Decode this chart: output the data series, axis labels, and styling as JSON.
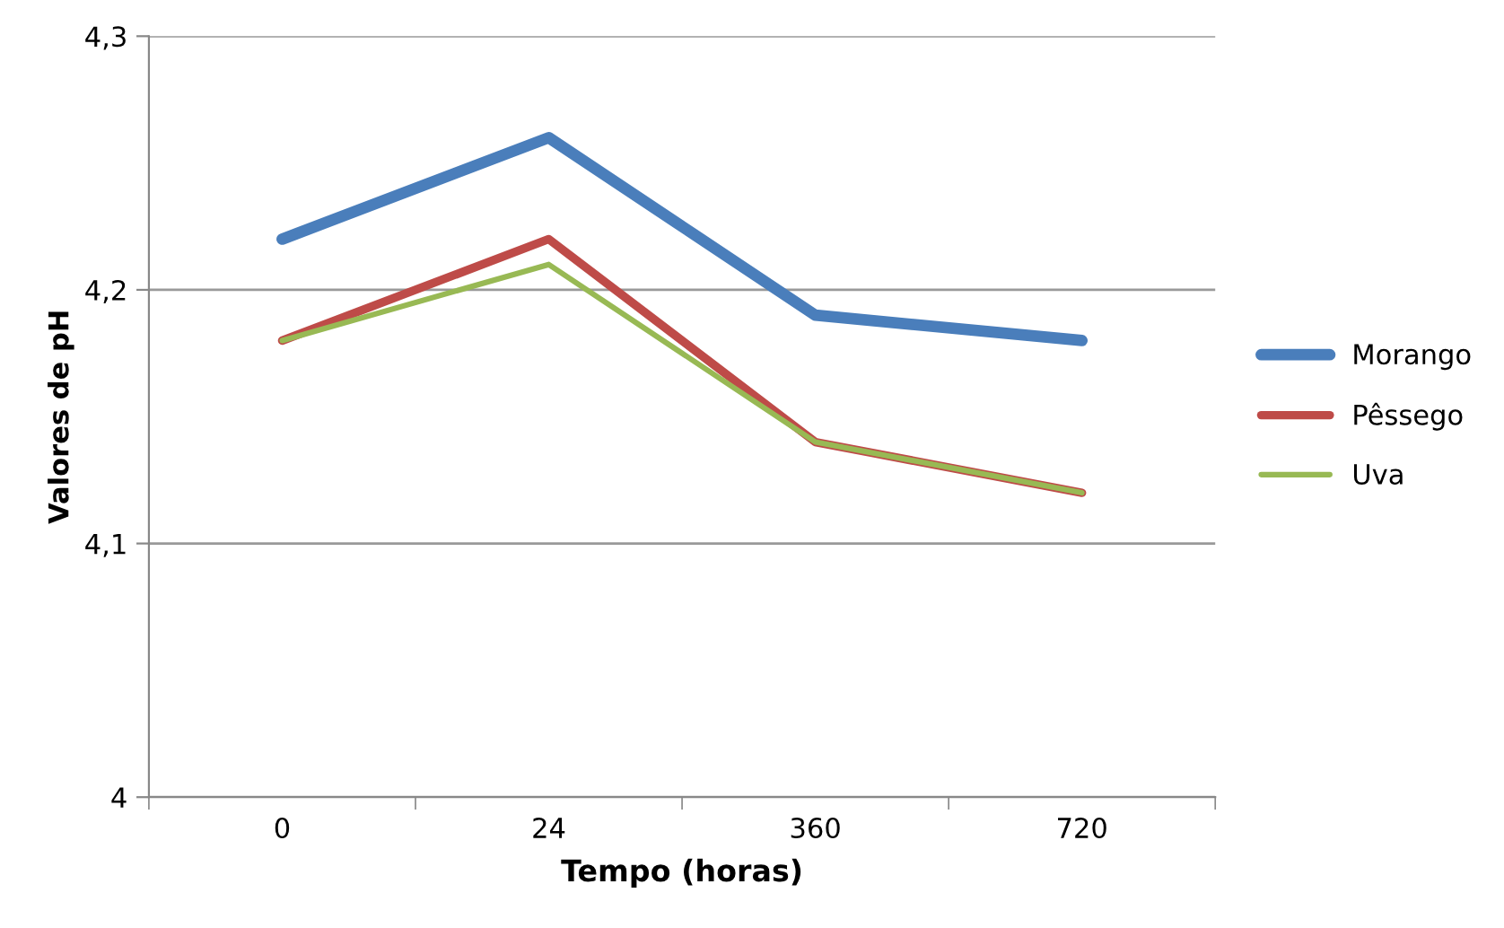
{
  "chart_data": {
    "type": "line",
    "xlabel": "Tempo (horas)",
    "ylabel": "Valores de pH",
    "categories": [
      "0",
      "24",
      "360",
      "720"
    ],
    "series": [
      {
        "name": "Morango",
        "color": "#4a7ebb",
        "values": [
          4.22,
          4.26,
          4.19,
          4.18
        ]
      },
      {
        "name": "Pêssego",
        "color": "#be4b48",
        "values": [
          4.18,
          4.22,
          4.14,
          4.12
        ]
      },
      {
        "name": "Uva",
        "color": "#98b954",
        "values": [
          4.18,
          4.21,
          4.14,
          4.12
        ]
      }
    ],
    "ylim": [
      4,
      4.3
    ],
    "yticks": [
      4,
      {
        "value": 4.1,
        "label": "4,1"
      },
      {
        "value": 4.2,
        "label": "4,2"
      },
      {
        "value": 4.3,
        "label": "4,3"
      }
    ],
    "grid": "y",
    "legend": "right",
    "marker": "none",
    "line_style": "solid"
  }
}
